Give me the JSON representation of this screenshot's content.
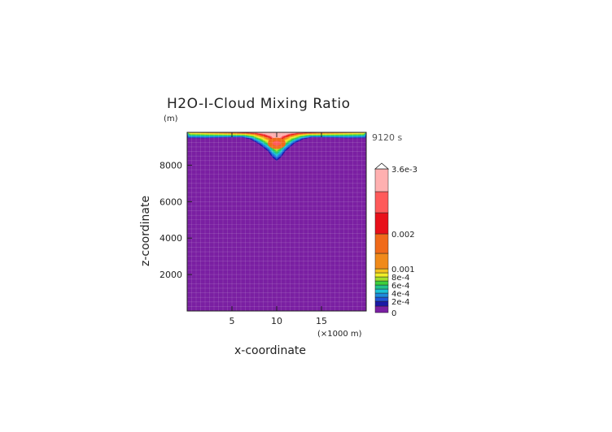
{
  "chart_data": {
    "type": "heatmap",
    "title": "H2O-I-Cloud Mixing Ratio",
    "time_label": "9120 s",
    "z_unit": "(m)",
    "x_unit": "(×1000 m)",
    "xlabel": "x-coordinate",
    "ylabel": "z-coordinate",
    "xlim": [
      0,
      20
    ],
    "ylim": [
      0,
      9800
    ],
    "x_ticks": [
      5,
      10,
      15
    ],
    "x_tick_labels": [
      "5",
      "10",
      "15"
    ],
    "y_ticks": [
      2000,
      4000,
      6000,
      8000
    ],
    "y_tick_labels": [
      "2000",
      "4000",
      "6000",
      "8000"
    ],
    "grid": true,
    "cloud_base_profile": {
      "x": [
        0,
        2,
        4,
        6,
        7,
        8,
        9,
        9.5,
        10,
        10.5,
        11,
        12,
        13,
        14,
        16,
        18,
        20
      ],
      "z": [
        9450,
        9450,
        9480,
        9500,
        9400,
        9100,
        8700,
        8350,
        8150,
        8350,
        8700,
        9150,
        9400,
        9500,
        9480,
        9450,
        9450
      ]
    },
    "max_value": "3.6e-3",
    "max_location": {
      "x": 10,
      "z": 9200
    },
    "colorbar": {
      "levels": [
        0,
        0.0001,
        0.0002,
        0.0003,
        0.0004,
        0.0005,
        0.0006,
        0.0007,
        0.0008,
        0.0009,
        0.001,
        0.0015,
        0.002,
        0.0025,
        0.003,
        0.0036
      ],
      "colors": [
        "#7a1fa2",
        "#1a1aa6",
        "#1f55d8",
        "#1e8bdc",
        "#1cc2d6",
        "#21c28a",
        "#3ccf3c",
        "#a4e02c",
        "#f2ee28",
        "#f4c21e",
        "#f08a1a",
        "#f06a1a",
        "#e8101a",
        "#ff5a5a",
        "#ffb0b0"
      ],
      "labels": [
        {
          "value": 0,
          "text": "0"
        },
        {
          "value": 0.0002,
          "text": "2e-4"
        },
        {
          "value": 0.0004,
          "text": "4e-4"
        },
        {
          "value": 0.0006,
          "text": "6e-4"
        },
        {
          "value": 0.0008,
          "text": "8e-4"
        },
        {
          "value": 0.001,
          "text": "0.001"
        },
        {
          "value": 0.002,
          "text": "0.002"
        },
        {
          "value": 0.0036,
          "text": "3.6e-3"
        }
      ]
    }
  }
}
